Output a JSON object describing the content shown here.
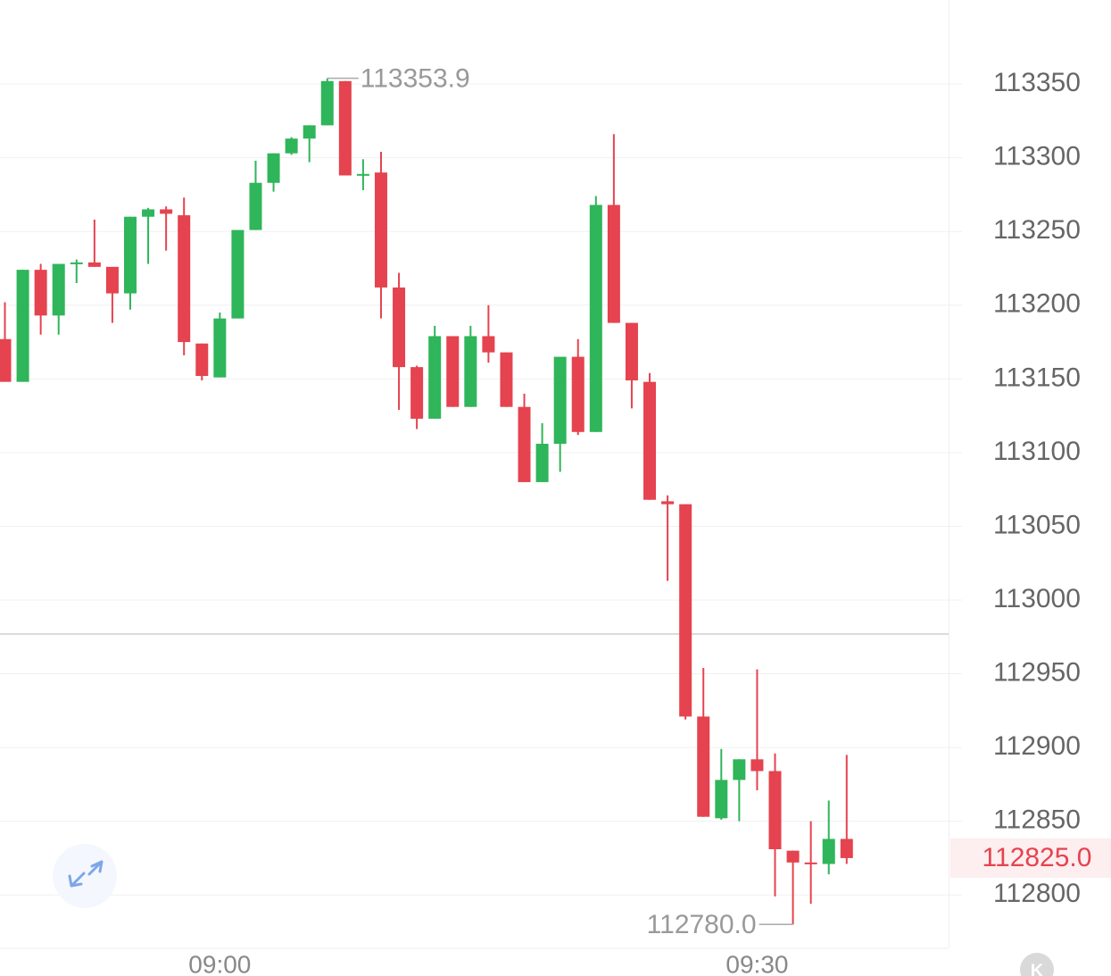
{
  "chart_data": {
    "type": "candlestick",
    "categories": [
      null,
      null,
      null,
      null,
      null,
      null,
      null,
      null,
      null,
      null,
      null,
      null,
      "09:00",
      null,
      null,
      null,
      null,
      null,
      null,
      null,
      null,
      null,
      null,
      null,
      null,
      null,
      null,
      null,
      null,
      null,
      null,
      null,
      null,
      null,
      null,
      null,
      null,
      null,
      null,
      null,
      null,
      null,
      "09:30",
      null,
      null,
      null,
      null,
      null
    ],
    "open": [
      113177,
      113148,
      113224,
      113193,
      113228,
      113229,
      113226,
      113208,
      113260,
      113265,
      113261,
      113174,
      113151,
      113191,
      113251,
      113283,
      113303,
      113313,
      113322,
      113352,
      113288,
      113290,
      113212,
      113158,
      113123,
      113179,
      113131,
      113179,
      113168,
      113131,
      113080,
      113106,
      113165,
      113114,
      113268,
      113188,
      113148,
      113067,
      113065,
      112921,
      112852,
      112878,
      112892,
      112884,
      112830,
      112822,
      112821,
      112838
    ],
    "high": [
      113202,
      113224,
      113228,
      113228,
      113231,
      113258,
      113226,
      113260,
      113266,
      113267,
      113273,
      113174,
      113195,
      113251,
      113298,
      113303,
      113314,
      113322,
      113353.9,
      113352,
      113299,
      113304,
      113222,
      113159,
      113186,
      113179,
      113186,
      113200,
      113168,
      113140,
      113120,
      113165,
      113177,
      113274,
      113316,
      113188,
      113154,
      113071,
      113065,
      112954,
      112899,
      112892,
      112953,
      112896,
      112830,
      112850,
      112864,
      112895
    ],
    "low": [
      113148,
      113148,
      113180,
      113180,
      113215,
      113226,
      113188,
      113197,
      113228,
      113237,
      113166,
      113149,
      113151,
      113191,
      113251,
      113277,
      113302,
      113297,
      113322,
      113288,
      113278,
      113191,
      113129,
      113116,
      113123,
      113131,
      113131,
      113161,
      113131,
      113080,
      113080,
      113087,
      113112,
      113114,
      113188,
      113130,
      113068,
      113013,
      112919,
      112853,
      112851,
      112850,
      112871,
      112799,
      112780,
      112794,
      112814,
      112821
    ],
    "close": [
      113148,
      113224,
      113193,
      113228,
      113229,
      113226,
      113208,
      113260,
      113265,
      113262,
      113175,
      113152,
      113191,
      113251,
      113283,
      113303,
      113313,
      113322,
      113352,
      113288,
      113289,
      113212,
      113158,
      113123,
      113179,
      113131,
      113179,
      113168,
      113131,
      113080,
      113106,
      113165,
      113114,
      113268,
      113188,
      113149,
      113068,
      113065,
      112921,
      112853,
      112878,
      112892,
      112884,
      112831,
      112822,
      112821,
      112838,
      112825
    ],
    "up_color": "#2fb55a",
    "down_color": "#e5434f",
    "ylim": [
      112765,
      113407
    ],
    "yticks": [
      112800,
      112850,
      112900,
      112950,
      113000,
      113050,
      113100,
      113150,
      113200,
      113250,
      113300,
      113350
    ],
    "grid": true,
    "reference_line": 112977,
    "max_label": {
      "value": 113353.9,
      "label": "113353.9"
    },
    "min_label": {
      "value": 112780,
      "label": "112780.0"
    },
    "last_price": {
      "value": 112825,
      "label": "112825.0"
    },
    "badge": "K"
  }
}
